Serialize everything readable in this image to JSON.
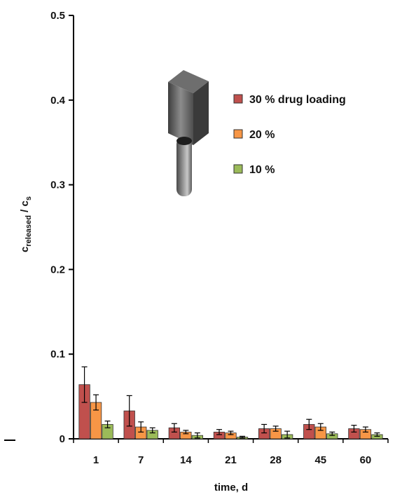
{
  "chart_data": {
    "type": "bar",
    "categories": [
      "1",
      "7",
      "14",
      "21",
      "28",
      "45",
      "60"
    ],
    "xlabel": "time, d",
    "ylabel": {
      "main": "c",
      "sub1": "released",
      "sep": " / c",
      "sub2": "s"
    },
    "ylim": [
      0,
      0.5
    ],
    "yticks": [
      "0",
      "0.1",
      "0.2",
      "0.3",
      "0.4",
      "0.5"
    ],
    "grid": false,
    "legend_position": "top-right",
    "series": [
      {
        "name": "30 % drug loading",
        "color": "#c0504d",
        "values": [
          0.064,
          0.033,
          0.013,
          0.008,
          0.012,
          0.017,
          0.012
        ],
        "errors": [
          0.021,
          0.018,
          0.005,
          0.003,
          0.005,
          0.006,
          0.004
        ]
      },
      {
        "name": "20 %",
        "color": "#f79646",
        "values": [
          0.043,
          0.014,
          0.008,
          0.007,
          0.012,
          0.014,
          0.011
        ],
        "errors": [
          0.009,
          0.006,
          0.002,
          0.002,
          0.003,
          0.004,
          0.003
        ]
      },
      {
        "name": "10 %",
        "color": "#9bbb59",
        "values": [
          0.017,
          0.01,
          0.004,
          0.002,
          0.005,
          0.006,
          0.005
        ],
        "errors": [
          0.004,
          0.003,
          0.003,
          0.001,
          0.004,
          0.002,
          0.002
        ]
      }
    ],
    "inset_image": "implant-rod-icon"
  }
}
